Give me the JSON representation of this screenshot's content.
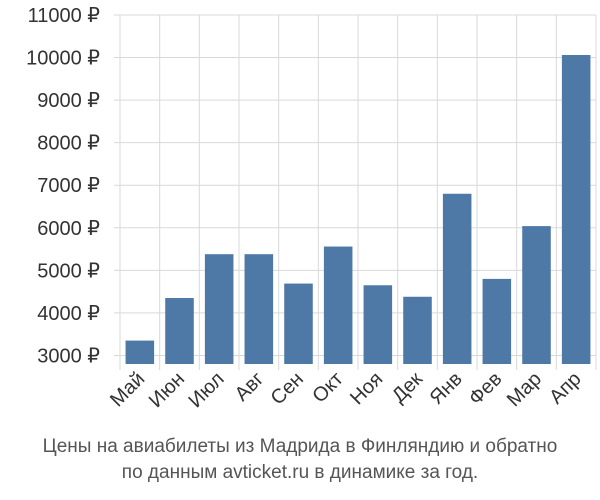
{
  "chart_data": {
    "type": "bar",
    "categories": [
      "Май",
      "Июн",
      "Июл",
      "Авг",
      "Сен",
      "Окт",
      "Ноя",
      "Дек",
      "Янв",
      "Фев",
      "Мар",
      "Апр"
    ],
    "values": [
      3350,
      4350,
      5380,
      5380,
      4690,
      5560,
      4650,
      4380,
      6800,
      4800,
      6040,
      10060
    ],
    "yticks": [
      "3000 ₽",
      "4000 ₽",
      "5000 ₽",
      "6000 ₽",
      "7000 ₽",
      "8000 ₽",
      "9000 ₽",
      "10000 ₽",
      "11000 ₽"
    ],
    "ylim": [
      2800,
      11000
    ],
    "grid": true,
    "bar_color": "#4e79a7"
  },
  "caption": {
    "line1": "Цены на авиабилеты из Мадрида в Финляндию и обратно",
    "line2": "по данным avticket.ru в динамике за год."
  }
}
